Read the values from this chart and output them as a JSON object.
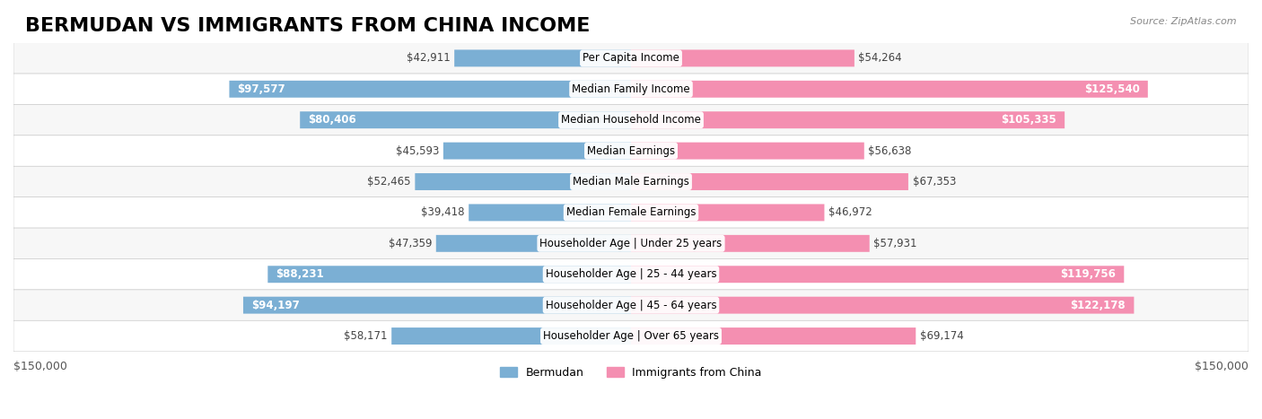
{
  "title": "BERMUDAN VS IMMIGRANTS FROM CHINA INCOME",
  "source": "Source: ZipAtlas.com",
  "categories": [
    "Per Capita Income",
    "Median Family Income",
    "Median Household Income",
    "Median Earnings",
    "Median Male Earnings",
    "Median Female Earnings",
    "Householder Age | Under 25 years",
    "Householder Age | 25 - 44 years",
    "Householder Age | 45 - 64 years",
    "Householder Age | Over 65 years"
  ],
  "bermudan": [
    42911,
    97577,
    80406,
    45593,
    52465,
    39418,
    47359,
    88231,
    94197,
    58171
  ],
  "china": [
    54264,
    125540,
    105335,
    56638,
    67353,
    46972,
    57931,
    119756,
    122178,
    69174
  ],
  "bermudan_color": "#7bafd4",
  "china_color": "#f48fb1",
  "bar_bg_color": "#f0f0f0",
  "row_bg_even": "#f7f7f7",
  "row_bg_odd": "#ffffff",
  "label_color_dark": "#555555",
  "label_color_white": "#ffffff",
  "max_val": 150000,
  "legend_bermudan": "Bermudan",
  "legend_china": "Immigrants from China",
  "title_fontsize": 16,
  "axis_label_fontsize": 9,
  "bar_label_fontsize": 8.5,
  "cat_label_fontsize": 8.5
}
